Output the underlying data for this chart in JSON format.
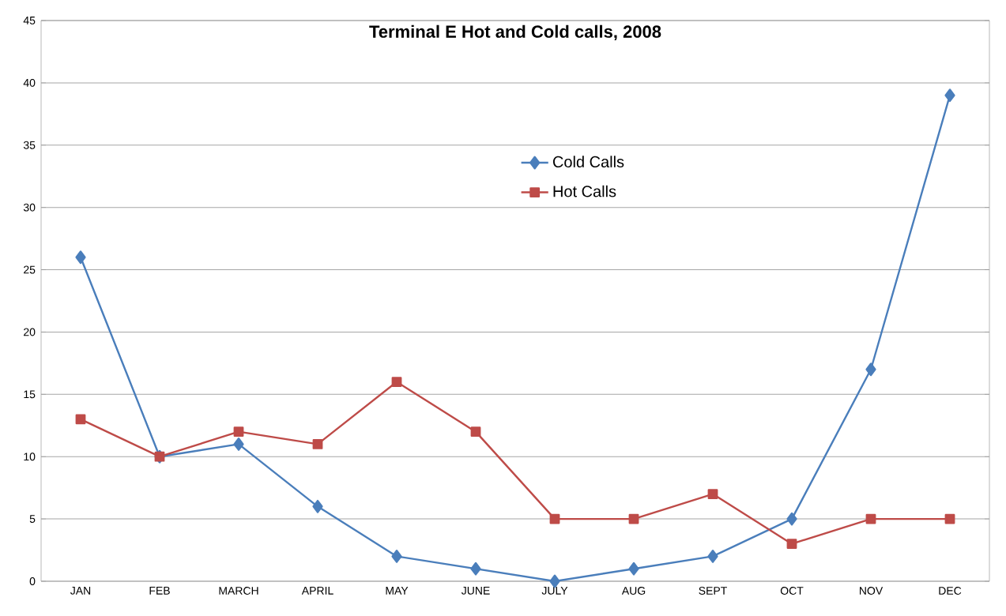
{
  "chart_data": {
    "type": "line",
    "title": "Terminal E Hot and Cold calls, 2008",
    "categories": [
      "JAN",
      "FEB",
      "MARCH",
      "APRIL",
      "MAY",
      "JUNE",
      "JULY",
      "AUG",
      "SEPT",
      "OCT",
      "NOV",
      "DEC"
    ],
    "series": [
      {
        "name": "Cold Calls",
        "color": "#4a7ebb",
        "marker": "diamond",
        "values": [
          26,
          10,
          11,
          6,
          2,
          1,
          0,
          1,
          2,
          5,
          17,
          39
        ]
      },
      {
        "name": "Hot Calls",
        "color": "#be4b48",
        "marker": "square",
        "values": [
          13,
          10,
          12,
          11,
          16,
          12,
          5,
          5,
          7,
          3,
          5,
          5
        ]
      }
    ],
    "ylim": [
      0,
      45
    ],
    "yticks": [
      0,
      5,
      10,
      15,
      20,
      25,
      30,
      35,
      40,
      45
    ],
    "grid": "y",
    "legend": "top",
    "line_style": "solid"
  }
}
